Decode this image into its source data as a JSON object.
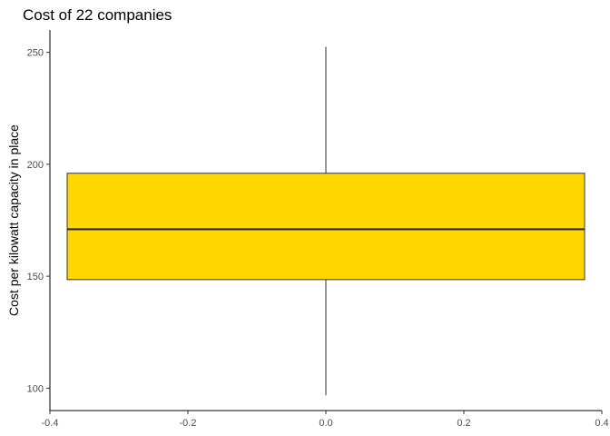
{
  "chart_data": {
    "type": "boxplot",
    "title": "Cost of 22 companies",
    "xlabel": "",
    "ylabel": "Cost per kilowatt capacity in place",
    "xlim": [
      -0.4,
      0.4
    ],
    "ylim": [
      90,
      260
    ],
    "x_ticks": [
      -0.4,
      -0.2,
      0.0,
      0.2,
      0.4
    ],
    "x_tick_labels": [
      "-0.4",
      "-0.2",
      "0.0",
      "0.2",
      "0.4"
    ],
    "y_ticks": [
      100,
      150,
      200,
      250
    ],
    "y_tick_labels": [
      "100",
      "150",
      "200",
      "250"
    ],
    "box": {
      "x_left": -0.375,
      "x_right": 0.375,
      "x_center": 0.0,
      "min": 96.8,
      "q1": 148.5,
      "median": 171.0,
      "q3": 196.0,
      "max": 252.5
    },
    "colors": {
      "box_fill": "#FFD700",
      "box_stroke": "#333333",
      "median": "#222222",
      "axis": "#000000",
      "tick_text": "#4d4d4d"
    },
    "grid": false
  }
}
